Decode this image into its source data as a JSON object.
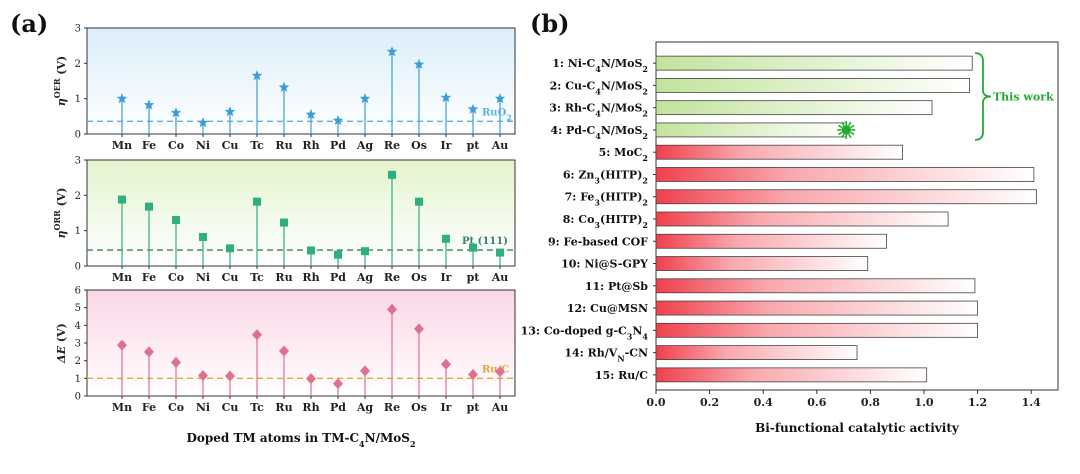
{
  "panel_labels": {
    "a": "(a)",
    "b": "(b)"
  },
  "colors": {
    "oer": "#3b9fd6",
    "oer_ref": "#5ab4e0",
    "orr": "#2fae80",
    "orr_ref": "#3a7f7a",
    "de": "#e07090",
    "de_ref": "#e5a63a",
    "bar_green": "#c9e6a6",
    "bar_red": "#f04a55",
    "bracket": "#22aa33"
  },
  "chart_data": [
    {
      "type": "stem",
      "id": "oer",
      "ylabel_main": "η",
      "ylabel_sup": "OER",
      "ylabel_unit": "(V)",
      "ylim": [
        0,
        3
      ],
      "yticks": [
        0,
        1,
        2,
        3
      ],
      "categories": [
        "Mn",
        "Fe",
        "Co",
        "Ni",
        "Cu",
        "Tc",
        "Ru",
        "Rh",
        "Pd",
        "Ag",
        "Re",
        "Os",
        "Ir",
        "pt",
        "Au"
      ],
      "values": [
        1.0,
        0.82,
        0.6,
        0.32,
        0.63,
        1.65,
        1.32,
        0.55,
        0.38,
        1.0,
        2.33,
        1.97,
        1.03,
        0.7,
        1.0
      ],
      "reference": {
        "label": "RuO",
        "label_sub": "2",
        "value": 0.36
      },
      "marker": "star"
    },
    {
      "type": "stem",
      "id": "orr",
      "ylabel_main": "η",
      "ylabel_sup": "ORR",
      "ylabel_unit": "(V)",
      "ylim": [
        0,
        3
      ],
      "yticks": [
        0,
        1,
        2,
        3
      ],
      "categories": [
        "Mn",
        "Fe",
        "Co",
        "Ni",
        "Cu",
        "Tc",
        "Ru",
        "Rh",
        "Pd",
        "Ag",
        "Re",
        "Os",
        "Ir",
        "pt",
        "Au"
      ],
      "values": [
        1.88,
        1.68,
        1.3,
        0.82,
        0.5,
        1.82,
        1.23,
        0.44,
        0.32,
        0.42,
        2.58,
        1.82,
        0.77,
        0.52,
        0.38
      ],
      "reference": {
        "label": "Pt (111)",
        "label_sub": "",
        "value": 0.45
      },
      "marker": "square"
    },
    {
      "type": "stem",
      "id": "de",
      "ylabel_main": "ΔE",
      "ylabel_sup": "",
      "ylabel_unit": "(V)",
      "ylim": [
        0,
        6
      ],
      "yticks": [
        0,
        1,
        2,
        3,
        4,
        5,
        6
      ],
      "categories": [
        "Mn",
        "Fe",
        "Co",
        "Ni",
        "Cu",
        "Tc",
        "Ru",
        "Rh",
        "Pd",
        "Ag",
        "Re",
        "Os",
        "Ir",
        "pt",
        "Au"
      ],
      "values": [
        2.88,
        2.5,
        1.9,
        1.15,
        1.13,
        3.47,
        2.55,
        0.98,
        0.7,
        1.42,
        4.9,
        3.8,
        1.8,
        1.22,
        1.38
      ],
      "reference": {
        "label": "Ru/C",
        "label_sub": "",
        "value": 1.0
      },
      "marker": "diamond",
      "xlabel": "Doped TM atoms in TM-C4N/MoS2"
    },
    {
      "type": "bar",
      "id": "activity",
      "orientation": "horizontal",
      "xlabel": "Bi-functional catalytic activity",
      "xlim": [
        0,
        1.5
      ],
      "xticks": [
        "0.0",
        "0.2",
        "0.4",
        "0.6",
        "0.8",
        "1.0",
        "1.2",
        "1.4"
      ],
      "categories": [
        "1: Ni-C4N/MoS2",
        "2: Cu-C4N/MoS2",
        "3: Rh-C4N/MoS2",
        "4: Pd-C4N/MoS2",
        "5: MoC2",
        "6: Zn3(HITP)2",
        "7: Fe3(HITP)2",
        "8: Co3(HITP)2",
        "9: Fe-based COF",
        "10: Ni@S-GPY",
        "11: Pt@Sb",
        "12: Cu@MSN",
        "13: Co-doped g-C3N4",
        "14: Rh/VN-CN",
        "15: Ru/C"
      ],
      "values": [
        1.18,
        1.17,
        1.03,
        0.71,
        0.92,
        1.41,
        1.42,
        1.09,
        0.86,
        0.79,
        1.19,
        1.2,
        1.2,
        0.75,
        1.01
      ],
      "group": [
        "this",
        "this",
        "this",
        "this",
        "ref",
        "ref",
        "ref",
        "ref",
        "ref",
        "ref",
        "ref",
        "ref",
        "ref",
        "ref",
        "ref"
      ],
      "annotation": "This work",
      "highlight_marker": "sun",
      "highlight_index": 3
    }
  ]
}
